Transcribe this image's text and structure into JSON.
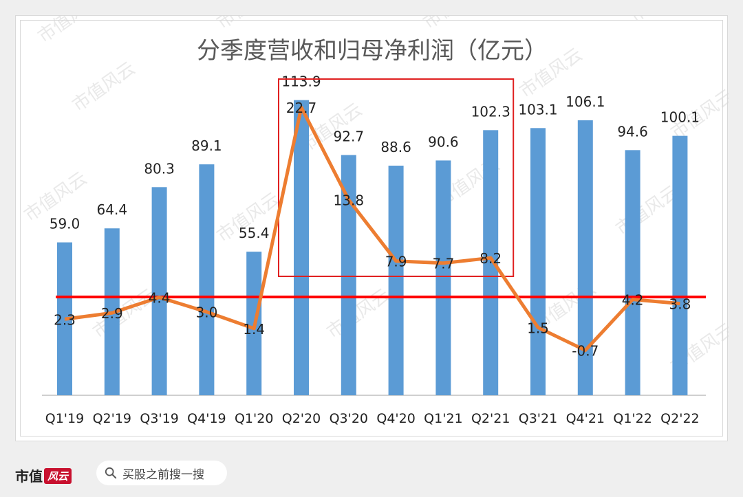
{
  "chart_data": {
    "type": "bar",
    "title": "分季度营收和归母净利润（亿元）",
    "categories": [
      "Q1'19",
      "Q2'19",
      "Q3'19",
      "Q4'19",
      "Q1'20",
      "Q2'20",
      "Q3'20",
      "Q4'20",
      "Q1'21",
      "Q2'21",
      "Q3'21",
      "Q4'21",
      "Q1'22",
      "Q2'22"
    ],
    "series": [
      {
        "type": "bar",
        "color": "#5b9bd5",
        "values": [
          59.0,
          64.4,
          80.3,
          89.1,
          55.4,
          113.9,
          92.7,
          88.6,
          90.6,
          102.3,
          103.1,
          106.1,
          94.6,
          100.1
        ],
        "labels": [
          "59.0",
          "64.4",
          "80.3",
          "89.1",
          "55.4",
          "113.9",
          "92.7",
          "88.6",
          "90.6",
          "102.3",
          "103.1",
          "106.1",
          "94.6",
          "100.1"
        ]
      },
      {
        "type": "line",
        "color": "#ed7d31",
        "values": [
          2.3,
          2.9,
          4.4,
          3.0,
          1.4,
          22.7,
          13.8,
          7.9,
          7.7,
          8.2,
          1.5,
          -0.7,
          4.2,
          3.8
        ],
        "labels": [
          "2.3",
          "2.9",
          "4.4",
          "3.0",
          "1.4",
          "22.7",
          "13.8",
          "7.9",
          "7.7",
          "8.2",
          "1.5",
          "-0.7",
          "4.2",
          "3.8"
        ]
      }
    ],
    "annotations": [
      {
        "type": "horizontal-line",
        "color": "#ff0000"
      },
      {
        "type": "highlight-box",
        "color": "#e02020",
        "from": "Q2'20",
        "to": "Q2'21"
      }
    ],
    "grid": false,
    "legend": "none"
  },
  "footer": {
    "brand": "市值",
    "brand_mark": "风云",
    "search_placeholder": "买股之前搜一搜",
    "search_icon": "search-icon"
  },
  "watermark": "市值风云"
}
